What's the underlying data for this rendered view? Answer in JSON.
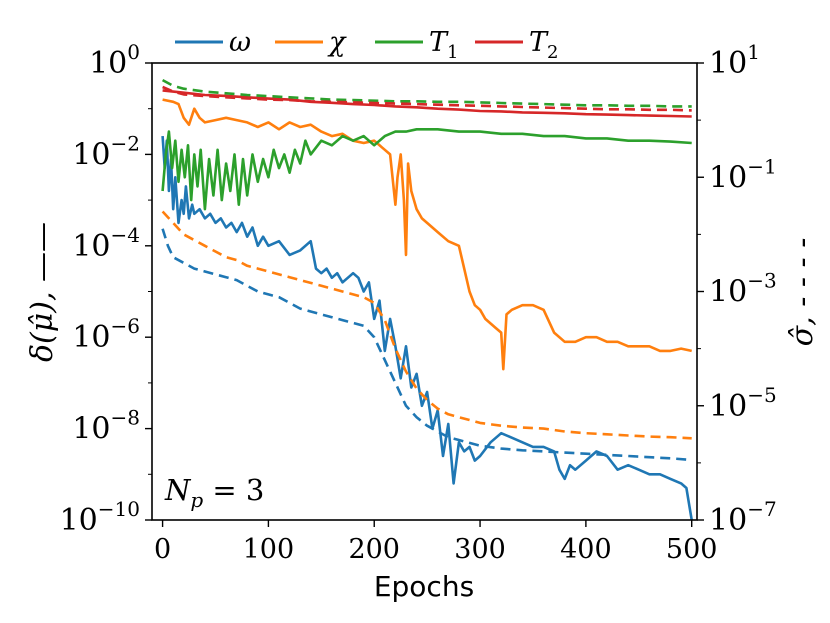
{
  "chart_data": {
    "type": "line",
    "xlabel": "Epochs",
    "ylabel_left": "δ(μ̂), ——",
    "ylabel_right": "σ̂, - - - -",
    "annotation": "N_p = 3",
    "annotation_text": {
      "main": "N",
      "sub": "p",
      "rest": " = 3"
    },
    "xlim": [
      -10,
      505
    ],
    "ylim_left_log10": [
      -10,
      0
    ],
    "ylim_right_log10": [
      -7,
      1
    ],
    "x_ticks": [
      0,
      100,
      200,
      300,
      400,
      500
    ],
    "x_tick_labels": [
      "0",
      "100",
      "200",
      "300",
      "400",
      "500"
    ],
    "y_left_ticks": [
      {
        "exp": 0,
        "label": "10",
        "sup": "0"
      },
      {
        "exp": -2,
        "label": "10",
        "sup": "−2"
      },
      {
        "exp": -4,
        "label": "10",
        "sup": "−4"
      },
      {
        "exp": -6,
        "label": "10",
        "sup": "−6"
      },
      {
        "exp": -8,
        "label": "10",
        "sup": "−8"
      },
      {
        "exp": -10,
        "label": "10",
        "sup": "−10"
      }
    ],
    "y_right_ticks": [
      {
        "exp": 1,
        "label": "10",
        "sup": "1"
      },
      {
        "exp": -1,
        "label": "10",
        "sup": "−1"
      },
      {
        "exp": -3,
        "label": "10",
        "sup": "−3"
      },
      {
        "exp": -5,
        "label": "10",
        "sup": "−5"
      },
      {
        "exp": -7,
        "label": "10",
        "sup": "−7"
      }
    ],
    "legend": [
      {
        "key": "omega",
        "label": "ω",
        "color": "#1f77b4"
      },
      {
        "key": "chi",
        "label": "χ",
        "color": "#ff7f0e"
      },
      {
        "key": "T1",
        "label": "T",
        "sub": "1",
        "color": "#2ca02c"
      },
      {
        "key": "T2",
        "label": "T",
        "sub": "2",
        "color": "#d62728"
      }
    ],
    "series": [
      {
        "name": "ω",
        "key": "omega",
        "style": "solid",
        "axis": "left",
        "color": "#1f77b4",
        "x": [
          0,
          2,
          4,
          6,
          8,
          10,
          12,
          15,
          18,
          20,
          22,
          25,
          28,
          30,
          35,
          40,
          45,
          50,
          55,
          60,
          65,
          70,
          75,
          80,
          85,
          90,
          95,
          100,
          110,
          120,
          130,
          140,
          145,
          150,
          155,
          160,
          165,
          170,
          175,
          180,
          185,
          190,
          195,
          200,
          205,
          210,
          215,
          220,
          225,
          230,
          235,
          240,
          245,
          250,
          255,
          260,
          265,
          270,
          275,
          280,
          285,
          290,
          295,
          300,
          310,
          320,
          330,
          340,
          350,
          360,
          370,
          375,
          380,
          385,
          390,
          400,
          410,
          420,
          430,
          440,
          450,
          460,
          470,
          480,
          490,
          495,
          500
        ],
        "log10": [
          -1.6,
          -2.3,
          -1.7,
          -2.8,
          -2.1,
          -3.2,
          -2.5,
          -3.5,
          -3.0,
          -3.3,
          -2.7,
          -3.4,
          -3.1,
          -3.3,
          -3.2,
          -3.4,
          -3.3,
          -3.5,
          -3.4,
          -3.6,
          -3.5,
          -3.7,
          -3.5,
          -3.8,
          -3.6,
          -4.0,
          -3.8,
          -4.0,
          -3.9,
          -4.2,
          -4.1,
          -3.9,
          -4.5,
          -4.6,
          -4.5,
          -4.7,
          -4.6,
          -4.8,
          -4.7,
          -4.6,
          -4.7,
          -5.0,
          -4.8,
          -5.6,
          -5.2,
          -6.3,
          -5.6,
          -6.2,
          -6.9,
          -6.2,
          -7.1,
          -6.8,
          -7.5,
          -7.2,
          -8.0,
          -7.6,
          -8.6,
          -7.9,
          -9.2,
          -8.3,
          -8.5,
          -8.4,
          -8.7,
          -8.6,
          -8.3,
          -8.1,
          -8.2,
          -8.3,
          -8.4,
          -8.4,
          -8.5,
          -8.9,
          -9.1,
          -8.8,
          -8.9,
          -8.7,
          -8.5,
          -8.6,
          -8.9,
          -8.8,
          -8.9,
          -9.0,
          -9.0,
          -9.1,
          -9.2,
          -9.3,
          -10.0
        ]
      },
      {
        "name": "χ",
        "key": "chi",
        "style": "solid",
        "axis": "left",
        "color": "#ff7f0e",
        "x": [
          0,
          10,
          15,
          20,
          25,
          30,
          35,
          40,
          50,
          60,
          70,
          80,
          90,
          100,
          110,
          120,
          130,
          140,
          150,
          160,
          170,
          180,
          190,
          200,
          210,
          215,
          220,
          222,
          225,
          228,
          230,
          232,
          235,
          240,
          245,
          250,
          255,
          260,
          270,
          280,
          285,
          290,
          295,
          300,
          305,
          310,
          315,
          320,
          322,
          325,
          330,
          340,
          350,
          360,
          370,
          380,
          390,
          400,
          410,
          420,
          430,
          440,
          450,
          460,
          470,
          480,
          490,
          500
        ],
        "log10": [
          -0.8,
          -0.85,
          -0.9,
          -1.2,
          -1.35,
          -1.0,
          -1.2,
          -1.3,
          -1.25,
          -1.2,
          -1.25,
          -1.3,
          -1.4,
          -1.3,
          -1.45,
          -1.3,
          -1.4,
          -1.35,
          -1.5,
          -1.6,
          -1.55,
          -1.7,
          -1.75,
          -1.7,
          -1.9,
          -2.0,
          -3.1,
          -2.5,
          -2.0,
          -3.0,
          -4.2,
          -2.2,
          -2.8,
          -3.2,
          -3.4,
          -3.5,
          -3.6,
          -3.7,
          -3.9,
          -4.0,
          -4.5,
          -5.0,
          -5.3,
          -5.4,
          -5.6,
          -5.7,
          -5.8,
          -5.9,
          -6.7,
          -5.5,
          -5.4,
          -5.3,
          -5.3,
          -5.4,
          -5.9,
          -6.1,
          -6.1,
          -6.0,
          -6.0,
          -6.1,
          -6.1,
          -6.2,
          -6.2,
          -6.2,
          -6.3,
          -6.3,
          -6.25,
          -6.3
        ]
      },
      {
        "name": "T₁",
        "key": "T1",
        "style": "solid",
        "axis": "left",
        "color": "#2ca02c",
        "x": [
          0,
          3,
          6,
          9,
          12,
          15,
          18,
          21,
          24,
          27,
          30,
          33,
          36,
          40,
          44,
          48,
          52,
          56,
          60,
          64,
          68,
          72,
          76,
          80,
          85,
          90,
          95,
          100,
          105,
          110,
          115,
          120,
          125,
          130,
          135,
          140,
          150,
          160,
          170,
          180,
          190,
          200,
          210,
          220,
          230,
          240,
          250,
          260,
          280,
          300,
          320,
          340,
          360,
          380,
          400,
          420,
          440,
          460,
          480,
          500
        ],
        "log10": [
          -2.8,
          -2.0,
          -1.5,
          -2.3,
          -1.7,
          -2.6,
          -1.9,
          -2.5,
          -1.8,
          -3.0,
          -2.0,
          -2.7,
          -1.9,
          -3.2,
          -2.1,
          -2.9,
          -1.9,
          -3.0,
          -2.2,
          -2.8,
          -2.0,
          -3.1,
          -2.1,
          -2.9,
          -2.0,
          -2.6,
          -2.1,
          -2.5,
          -1.9,
          -2.3,
          -2.0,
          -2.4,
          -1.9,
          -2.2,
          -1.7,
          -2.0,
          -1.7,
          -1.8,
          -1.6,
          -1.7,
          -1.6,
          -1.8,
          -1.6,
          -1.5,
          -1.5,
          -1.45,
          -1.45,
          -1.45,
          -1.5,
          -1.5,
          -1.55,
          -1.55,
          -1.6,
          -1.6,
          -1.65,
          -1.65,
          -1.7,
          -1.7,
          -1.72,
          -1.75
        ]
      },
      {
        "name": "T₂",
        "key": "T2",
        "style": "solid",
        "axis": "left",
        "color": "#d62728",
        "x": [
          0,
          20,
          40,
          60,
          80,
          100,
          120,
          140,
          160,
          180,
          200,
          220,
          240,
          260,
          280,
          300,
          320,
          340,
          360,
          380,
          400,
          420,
          440,
          460,
          480,
          500
        ],
        "log10": [
          -0.6,
          -0.65,
          -0.7,
          -0.72,
          -0.75,
          -0.78,
          -0.8,
          -0.85,
          -0.87,
          -0.9,
          -0.92,
          -0.95,
          -0.97,
          -1.0,
          -1.02,
          -1.05,
          -1.06,
          -1.08,
          -1.09,
          -1.1,
          -1.12,
          -1.13,
          -1.14,
          -1.15,
          -1.16,
          -1.17
        ]
      },
      {
        "name": "ω σ̂",
        "key": "omega_sigma",
        "style": "dashed",
        "axis": "right",
        "color": "#1f77b4",
        "x": [
          0,
          5,
          10,
          20,
          30,
          40,
          50,
          60,
          70,
          80,
          90,
          100,
          110,
          120,
          130,
          140,
          150,
          160,
          170,
          180,
          190,
          200,
          210,
          220,
          230,
          240,
          250,
          260,
          270,
          280,
          290,
          300,
          320,
          340,
          360,
          380,
          400,
          420,
          440,
          460,
          480,
          500
        ],
        "log10": [
          -1.9,
          -2.2,
          -2.4,
          -2.5,
          -2.6,
          -2.65,
          -2.7,
          -2.75,
          -2.8,
          -2.9,
          -3.0,
          -3.05,
          -3.1,
          -3.2,
          -3.3,
          -3.35,
          -3.4,
          -3.45,
          -3.5,
          -3.55,
          -3.6,
          -3.8,
          -4.2,
          -4.6,
          -5.0,
          -5.2,
          -5.35,
          -5.45,
          -5.55,
          -5.6,
          -5.65,
          -5.7,
          -5.75,
          -5.78,
          -5.8,
          -5.82,
          -5.84,
          -5.86,
          -5.88,
          -5.9,
          -5.92,
          -5.95
        ]
      },
      {
        "name": "χ σ̂",
        "key": "chi_sigma",
        "style": "dashed",
        "axis": "right",
        "color": "#ff7f0e",
        "x": [
          0,
          5,
          10,
          20,
          30,
          40,
          50,
          60,
          70,
          80,
          90,
          100,
          110,
          120,
          130,
          140,
          150,
          160,
          170,
          180,
          190,
          200,
          210,
          220,
          230,
          240,
          250,
          260,
          270,
          280,
          290,
          300,
          320,
          340,
          360,
          380,
          400,
          420,
          440,
          460,
          480,
          500
        ],
        "log10": [
          -1.6,
          -1.7,
          -1.8,
          -2.0,
          -2.1,
          -2.2,
          -2.3,
          -2.4,
          -2.45,
          -2.55,
          -2.6,
          -2.65,
          -2.7,
          -2.75,
          -2.8,
          -2.85,
          -2.9,
          -2.95,
          -3.0,
          -3.05,
          -3.1,
          -3.2,
          -3.5,
          -4.0,
          -4.4,
          -4.7,
          -4.9,
          -5.05,
          -5.15,
          -5.2,
          -5.25,
          -5.3,
          -5.35,
          -5.38,
          -5.4,
          -5.45,
          -5.48,
          -5.5,
          -5.52,
          -5.54,
          -5.55,
          -5.57
        ]
      },
      {
        "name": "T₁ σ̂",
        "key": "T1_sigma",
        "style": "dashed",
        "axis": "right",
        "color": "#2ca02c",
        "x": [
          0,
          10,
          20,
          40,
          60,
          80,
          100,
          120,
          140,
          160,
          180,
          200,
          220,
          240,
          260,
          280,
          300,
          320,
          340,
          360,
          380,
          400,
          420,
          440,
          460,
          480,
          500
        ],
        "log10": [
          0.7,
          0.6,
          0.55,
          0.5,
          0.47,
          0.44,
          0.42,
          0.4,
          0.38,
          0.36,
          0.35,
          0.34,
          0.33,
          0.33,
          0.32,
          0.32,
          0.31,
          0.3,
          0.29,
          0.28,
          0.27,
          0.26,
          0.26,
          0.25,
          0.25,
          0.24,
          0.24
        ]
      },
      {
        "name": "T₂ σ̂",
        "key": "T2_sigma",
        "style": "dashed",
        "axis": "right",
        "color": "#d62728",
        "x": [
          0,
          10,
          20,
          40,
          60,
          80,
          100,
          120,
          140,
          160,
          180,
          200,
          220,
          240,
          260,
          280,
          300,
          320,
          340,
          360,
          380,
          400,
          420,
          440,
          460,
          480,
          500
        ],
        "log10": [
          0.58,
          0.5,
          0.45,
          0.42,
          0.4,
          0.38,
          0.36,
          0.35,
          0.33,
          0.32,
          0.31,
          0.3,
          0.29,
          0.28,
          0.27,
          0.26,
          0.25,
          0.24,
          0.23,
          0.22,
          0.21,
          0.2,
          0.19,
          0.19,
          0.18,
          0.18,
          0.17
        ]
      }
    ]
  }
}
